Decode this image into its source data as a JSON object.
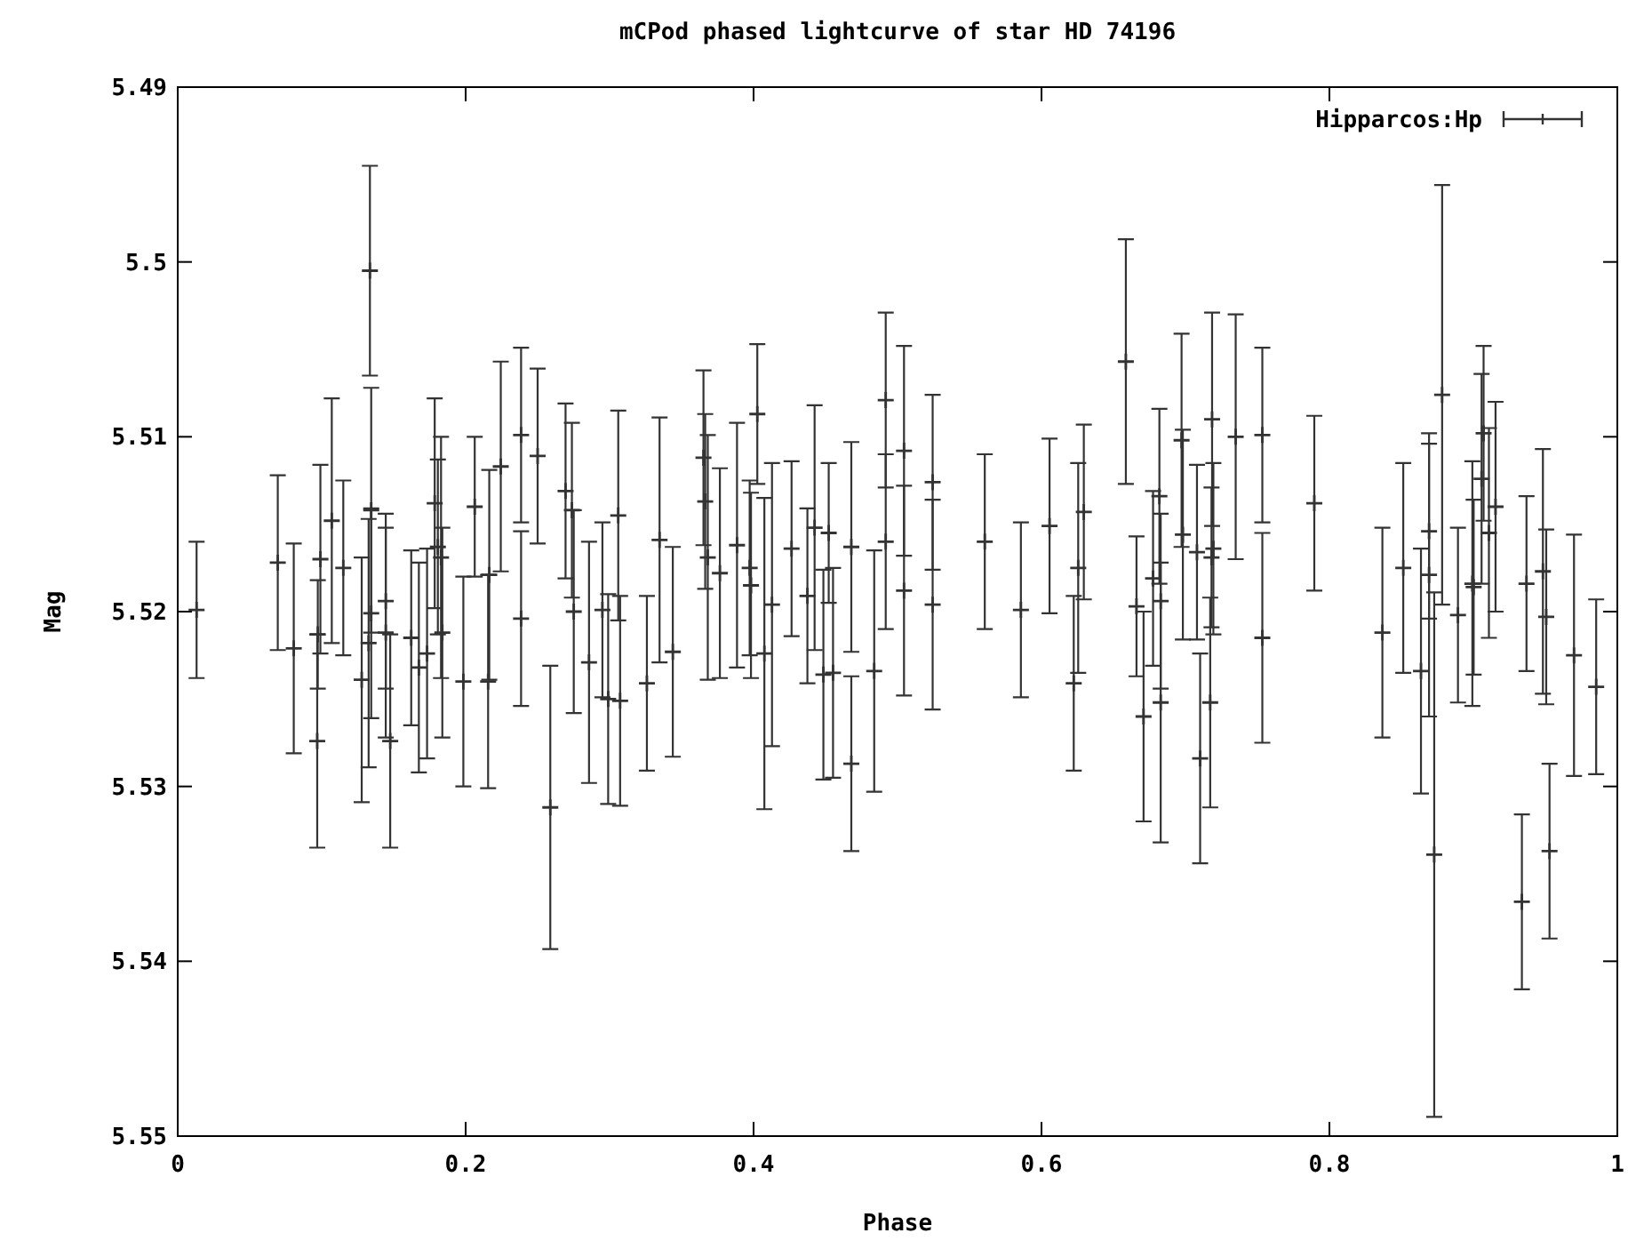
{
  "chart_data": {
    "type": "scatter",
    "title": "mCPod phased lightcurve of star HD 74196",
    "xlabel": "Phase",
    "ylabel": "Mag",
    "xlim": [
      0,
      1
    ],
    "xticks": [
      0,
      0.2,
      0.4,
      0.6,
      0.8,
      1
    ],
    "ylim": [
      5.55,
      5.49
    ],
    "yticks": [
      5.49,
      5.5,
      5.51,
      5.52,
      5.53,
      5.54,
      5.55
    ],
    "legend": "top right",
    "marker": "cross",
    "x": [
      0.0131,
      0.0695,
      0.0806,
      0.0991,
      0.0973,
      0.0969,
      0.107,
      0.115,
      0.1278,
      0.1335,
      0.1344,
      0.1344,
      0.1326,
      0.1445,
      0.1445,
      0.1476,
      0.1622,
      0.1675,
      0.1732,
      0.1785,
      0.1807,
      0.1829,
      0.1838,
      0.1984,
      0.2063,
      0.2164,
      0.2156,
      0.2244,
      0.2385,
      0.2385,
      0.25,
      0.2588,
      0.2694,
      0.2738,
      0.2751,
      0.2857,
      0.295,
      0.299,
      0.306,
      0.3073,
      0.3259,
      0.3347,
      0.3439,
      0.3652,
      0.3664,
      0.3682,
      0.3766,
      0.3885,
      0.3973,
      0.3982,
      0.4026,
      0.4075,
      0.4128,
      0.4264,
      0.4374,
      0.4424,
      0.4485,
      0.4522,
      0.4552,
      0.4679,
      0.4679,
      0.4838,
      0.4918,
      0.4918,
      0.5045,
      0.5045,
      0.5244,
      0.5244,
      0.5606,
      0.5857,
      0.6056,
      0.6224,
      0.6255,
      0.6294,
      0.6586,
      0.666,
      0.6709,
      0.6775,
      0.6819,
      0.6828,
      0.6828,
      0.6973,
      0.6982,
      0.708,
      0.7102,
      0.7185,
      0.7194,
      0.7181,
      0.7172,
      0.7349,
      0.7534,
      0.7534,
      0.7895,
      0.8368,
      0.8513,
      0.8636,
      0.8692,
      0.8692,
      0.8728,
      0.8783,
      0.8893,
      0.8993,
      0.9002,
      0.9057,
      0.9071,
      0.9108,
      0.9154,
      0.9337,
      0.9369,
      0.9483,
      0.9506,
      0.9529,
      0.9699,
      0.9853
    ],
    "series": [
      {
        "name": "Hipparcos:Hp",
        "color": "#333333",
        "values": [
          5.5199,
          5.5172,
          5.5221,
          5.517,
          5.5213,
          5.5274,
          5.5148,
          5.5175,
          5.5239,
          5.5005,
          5.5142,
          5.5201,
          5.5218,
          5.5194,
          5.5212,
          5.5274,
          5.5215,
          5.5232,
          5.5224,
          5.5138,
          5.5163,
          5.5169,
          5.5212,
          5.524,
          5.514,
          5.5179,
          5.524,
          5.5117,
          5.5099,
          5.5204,
          5.5111,
          5.5312,
          5.5131,
          5.5142,
          5.52,
          5.5229,
          5.5199,
          5.525,
          5.5145,
          5.5251,
          5.5241,
          5.5159,
          5.5223,
          5.5112,
          5.5137,
          5.5169,
          5.5178,
          5.5162,
          5.5175,
          5.5185,
          5.5087,
          5.5224,
          5.5196,
          5.5164,
          5.5191,
          5.5152,
          5.5236,
          5.5155,
          5.5235,
          5.5163,
          5.5287,
          5.5234,
          5.5079,
          5.516,
          5.5108,
          5.5188,
          5.5126,
          5.5196,
          5.516,
          5.5199,
          5.5151,
          5.5241,
          5.5175,
          5.5143,
          5.5057,
          5.5197,
          5.526,
          5.5181,
          5.5134,
          5.5194,
          5.5252,
          5.5102,
          5.5156,
          5.5166,
          5.5284,
          5.509,
          5.5164,
          5.5169,
          5.5252,
          5.51,
          5.5099,
          5.5215,
          5.5138,
          5.5212,
          5.5175,
          5.5234,
          5.5154,
          5.5179,
          5.5339,
          5.5076,
          5.5202,
          5.5184,
          5.5186,
          5.5124,
          5.5098,
          5.5155,
          5.514,
          5.5366,
          5.5184,
          5.5177,
          5.5203,
          5.5337,
          5.5225,
          5.5243
        ],
        "errors": [
          0.0039,
          0.005,
          0.006,
          0.0054,
          0.0031,
          0.0061,
          0.007,
          0.005,
          0.007,
          0.006,
          0.007,
          0.006,
          0.0071,
          0.005,
          0.006,
          0.0061,
          0.005,
          0.006,
          0.006,
          0.006,
          0.005,
          0.0069,
          0.006,
          0.006,
          0.004,
          0.006,
          0.0061,
          0.006,
          0.005,
          0.005,
          0.005,
          0.0081,
          0.005,
          0.005,
          0.0058,
          0.0069,
          0.005,
          0.006,
          0.006,
          0.006,
          0.005,
          0.007,
          0.006,
          0.005,
          0.005,
          0.007,
          0.006,
          0.007,
          0.005,
          0.0053,
          0.004,
          0.0089,
          0.0081,
          0.005,
          0.005,
          0.007,
          0.006,
          0.004,
          0.006,
          0.006,
          0.005,
          0.0069,
          0.005,
          0.005,
          0.006,
          0.006,
          0.005,
          0.006,
          0.005,
          0.005,
          0.005,
          0.005,
          0.006,
          0.005,
          0.007,
          0.004,
          0.006,
          0.005,
          0.005,
          0.005,
          0.008,
          0.0061,
          0.006,
          0.005,
          0.006,
          0.0061,
          0.0049,
          0.004,
          0.006,
          0.007,
          0.005,
          0.006,
          0.005,
          0.006,
          0.006,
          0.007,
          0.005,
          0.0081,
          0.015,
          0.012,
          0.005,
          0.007,
          0.005,
          0.006,
          0.005,
          0.006,
          0.006,
          0.005,
          0.005,
          0.007,
          0.005,
          0.005,
          0.0069,
          0.005
        ]
      }
    ]
  }
}
